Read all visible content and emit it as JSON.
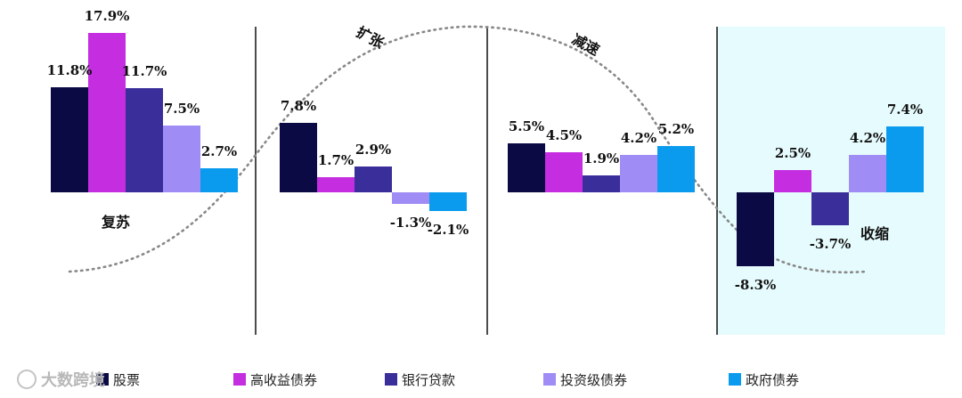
{
  "chart_data": {
    "type": "bar",
    "categories": [
      "复苏",
      "扩张",
      "减速",
      "收缩"
    ],
    "series": [
      {
        "name": "股票",
        "color": "#0b0a45",
        "values": [
          11.8,
          7.8,
          5.5,
          -8.3
        ]
      },
      {
        "name": "高收益债券",
        "color": "#c42ee0",
        "values": [
          17.9,
          1.7,
          4.5,
          2.5
        ]
      },
      {
        "name": "银行贷款",
        "color": "#3a2f9a",
        "values": [
          11.7,
          2.9,
          1.9,
          -3.7
        ]
      },
      {
        "name": "投资级债券",
        "color": "#9f8cf5",
        "values": [
          7.5,
          -1.3,
          4.2,
          4.2
        ]
      },
      {
        "name": "政府债券",
        "color": "#0a9bee",
        "values": [
          2.7,
          -2.1,
          5.2,
          7.4
        ]
      }
    ],
    "value_labels": [
      [
        "11.8%",
        "17.9%",
        "11.7%",
        "7.5%",
        "2.7%"
      ],
      [
        "7.8%",
        "1.7%",
        "2.9%",
        "-1.3%",
        "-2.1%"
      ],
      [
        "5.5%",
        "4.5%",
        "1.9%",
        "4.2%",
        "5.2%"
      ],
      [
        "-8.3%",
        "2.5%",
        "-3.7%",
        "4.2%",
        "7.4%"
      ]
    ],
    "highlight_panel": "收缩",
    "highlight_color": "#e6fbfd",
    "cycle_curve": "dotted",
    "legend_position": "bottom",
    "grid": false
  },
  "watermark": "大数跨境"
}
